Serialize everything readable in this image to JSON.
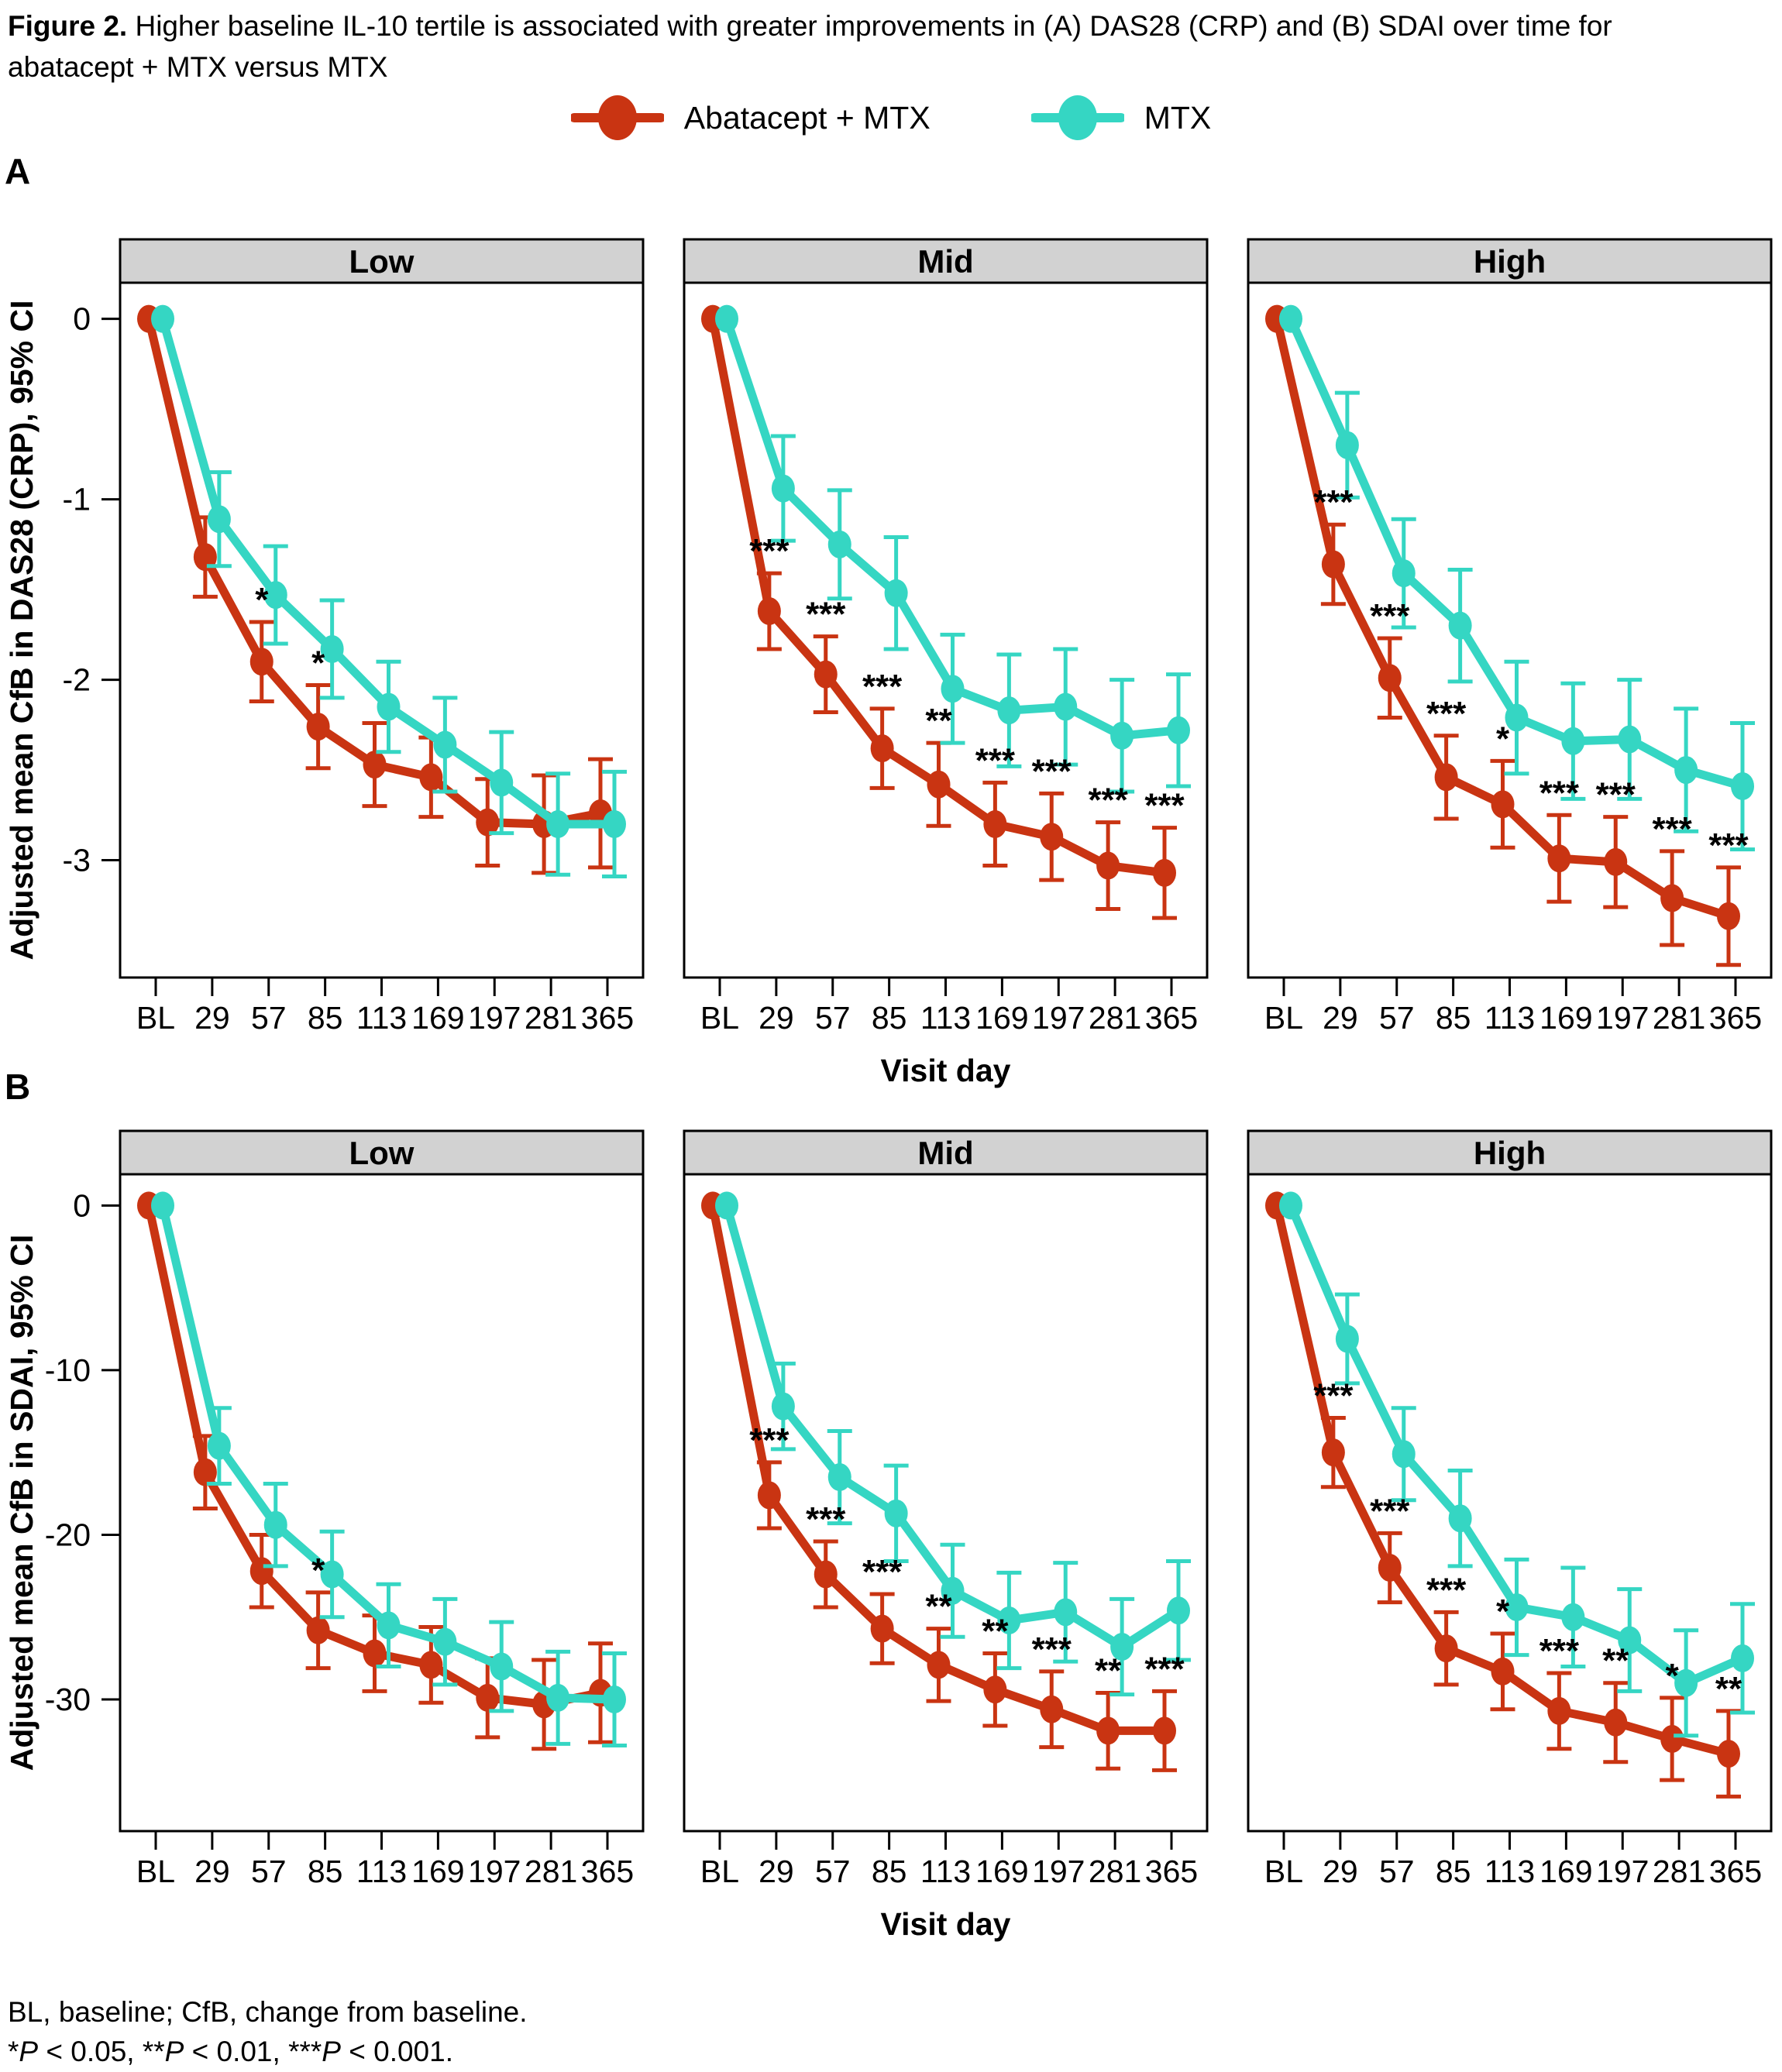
{
  "figure": {
    "label": "Figure 2.",
    "title_line1_rest": " Higher baseline IL-10 tertile is associated with greater improvements in (A) DAS28 (CRP) and (B) SDAI over time for",
    "title_line2": "abatacept + MTX versus MTX"
  },
  "colors": {
    "abatacept_mtx": "#C93412",
    "mtx": "#35D6C3",
    "facet_header": "#D2D2D2",
    "axis": "#000000"
  },
  "legend": {
    "items": [
      {
        "name": "Abatacept + MTX",
        "color": "#C93412"
      },
      {
        "name": "MTX",
        "color": "#35D6C3"
      }
    ]
  },
  "footnote": {
    "lines": [
      [
        {
          "text": "BL, baseline; CfB, change from baseline."
        }
      ],
      [
        {
          "text": "*"
        },
        {
          "text": "P",
          "italic": true
        },
        {
          "text": " < 0.05, **"
        },
        {
          "text": "P",
          "italic": true
        },
        {
          "text": " < 0.01, ***"
        },
        {
          "text": "P",
          "italic": true
        },
        {
          "text": " < 0.001."
        }
      ]
    ]
  },
  "chart_data": [
    {
      "type": "line",
      "panel_label": "A",
      "ylabel": "Adjusted mean CfB in DAS28 (CRP), 95% CI",
      "xlabel": "Visit day",
      "categories": [
        "BL",
        "29",
        "57",
        "85",
        "113",
        "169",
        "197",
        "281",
        "365"
      ],
      "yticks": [
        0,
        -1,
        -2,
        -3
      ],
      "ylim": [
        0.2,
        -3.65
      ],
      "grid": false,
      "legend_position": "top",
      "facets": [
        {
          "title": "Low",
          "series": [
            {
              "name": "Abatacept + MTX",
              "color": "#C93412",
              "values": [
                0,
                -1.32,
                -1.9,
                -2.26,
                -2.47,
                -2.54,
                -2.79,
                -2.8,
                -2.74
              ],
              "ci": [
                0,
                0.22,
                0.22,
                0.23,
                0.23,
                0.22,
                0.24,
                0.27,
                0.3
              ]
            },
            {
              "name": "MTX",
              "color": "#35D6C3",
              "values": [
                0,
                -1.11,
                -1.53,
                -1.83,
                -2.15,
                -2.36,
                -2.57,
                -2.8,
                -2.8
              ],
              "ci": [
                0,
                0.26,
                0.27,
                0.27,
                0.25,
                0.26,
                0.28,
                0.28,
                0.29
              ]
            }
          ],
          "significance": [
            "",
            "",
            "*",
            "*",
            "",
            "",
            "",
            "",
            ""
          ]
        },
        {
          "title": "Mid",
          "series": [
            {
              "name": "Abatacept + MTX",
              "color": "#C93412",
              "values": [
                0,
                -1.62,
                -1.97,
                -2.38,
                -2.58,
                -2.8,
                -2.87,
                -3.03,
                -3.07
              ],
              "ci": [
                0,
                0.21,
                0.21,
                0.22,
                0.23,
                0.23,
                0.24,
                0.24,
                0.25
              ]
            },
            {
              "name": "MTX",
              "color": "#35D6C3",
              "values": [
                0,
                -0.94,
                -1.25,
                -1.52,
                -2.05,
                -2.17,
                -2.15,
                -2.31,
                -2.28
              ],
              "ci": [
                0,
                0.29,
                0.3,
                0.31,
                0.3,
                0.31,
                0.32,
                0.31,
                0.31
              ]
            }
          ],
          "significance": [
            "",
            "***",
            "***",
            "***",
            "**",
            "***",
            "***",
            "***",
            "***"
          ]
        },
        {
          "title": "High",
          "series": [
            {
              "name": "Abatacept + MTX",
              "color": "#C93412",
              "values": [
                0,
                -1.36,
                -1.99,
                -2.54,
                -2.69,
                -2.99,
                -3.01,
                -3.21,
                -3.31
              ],
              "ci": [
                0,
                0.22,
                0.22,
                0.23,
                0.24,
                0.24,
                0.25,
                0.26,
                0.27
              ]
            },
            {
              "name": "MTX",
              "color": "#35D6C3",
              "values": [
                0,
                -0.7,
                -1.41,
                -1.7,
                -2.21,
                -2.34,
                -2.33,
                -2.5,
                -2.59
              ],
              "ci": [
                0,
                0.29,
                0.3,
                0.31,
                0.31,
                0.32,
                0.33,
                0.34,
                0.35
              ]
            }
          ],
          "significance": [
            "",
            "***",
            "***",
            "***",
            "*",
            "***",
            "***",
            "***",
            "***"
          ]
        }
      ]
    },
    {
      "type": "line",
      "panel_label": "B",
      "ylabel": "Adjusted mean CfB in SDAI, 95% CI",
      "xlabel": "Visit day",
      "categories": [
        "BL",
        "29",
        "57",
        "85",
        "113",
        "169",
        "197",
        "281",
        "365"
      ],
      "yticks": [
        0,
        -10,
        -20,
        -30
      ],
      "ylim": [
        1.9,
        -38
      ],
      "grid": false,
      "legend_position": "top",
      "facets": [
        {
          "title": "Low",
          "series": [
            {
              "name": "Abatacept + MTX",
              "color": "#C93412",
              "values": [
                0,
                -16.2,
                -22.2,
                -25.8,
                -27.2,
                -27.9,
                -29.9,
                -30.3,
                -29.6
              ],
              "ci": [
                0,
                2.2,
                2.2,
                2.3,
                2.3,
                2.3,
                2.4,
                2.7,
                3.0
              ]
            },
            {
              "name": "MTX",
              "color": "#35D6C3",
              "values": [
                0,
                -14.6,
                -19.4,
                -22.4,
                -25.5,
                -26.5,
                -28,
                -29.9,
                -30
              ],
              "ci": [
                0,
                2.3,
                2.5,
                2.6,
                2.5,
                2.6,
                2.7,
                2.8,
                2.8
              ]
            }
          ],
          "significance": [
            "",
            "",
            "",
            "*",
            "",
            "",
            "",
            "",
            ""
          ]
        },
        {
          "title": "Mid",
          "series": [
            {
              "name": "Abatacept + MTX",
              "color": "#C93412",
              "values": [
                0,
                -17.6,
                -22.4,
                -25.7,
                -27.9,
                -29.4,
                -30.6,
                -31.9,
                -31.9
              ],
              "ci": [
                0,
                2.0,
                2.0,
                2.1,
                2.2,
                2.2,
                2.3,
                2.3,
                2.4
              ]
            },
            {
              "name": "MTX",
              "color": "#35D6C3",
              "values": [
                0,
                -12.2,
                -16.5,
                -18.7,
                -23.4,
                -25.2,
                -24.7,
                -26.8,
                -24.6
              ],
              "ci": [
                0,
                2.6,
                2.8,
                2.9,
                2.8,
                2.9,
                3.0,
                2.9,
                3.0
              ]
            }
          ],
          "significance": [
            "",
            "***",
            "***",
            "***",
            "**",
            "**",
            "***",
            "**",
            "***"
          ]
        },
        {
          "title": "High",
          "series": [
            {
              "name": "Abatacept + MTX",
              "color": "#C93412",
              "values": [
                0,
                -15.0,
                -22.0,
                -26.9,
                -28.3,
                -30.7,
                -31.4,
                -32.4,
                -33.3
              ],
              "ci": [
                0,
                2.1,
                2.1,
                2.2,
                2.3,
                2.3,
                2.4,
                2.5,
                2.6
              ]
            },
            {
              "name": "MTX",
              "color": "#35D6C3",
              "values": [
                0,
                -8.1,
                -15.1,
                -19.0,
                -24.4,
                -25.0,
                -26.4,
                -29.0,
                -27.5
              ],
              "ci": [
                0,
                2.7,
                2.8,
                2.9,
                2.9,
                3.0,
                3.1,
                3.2,
                3.3
              ]
            }
          ],
          "significance": [
            "",
            "***",
            "***",
            "***",
            "*",
            "***",
            "**",
            "*",
            "**"
          ]
        }
      ]
    }
  ]
}
